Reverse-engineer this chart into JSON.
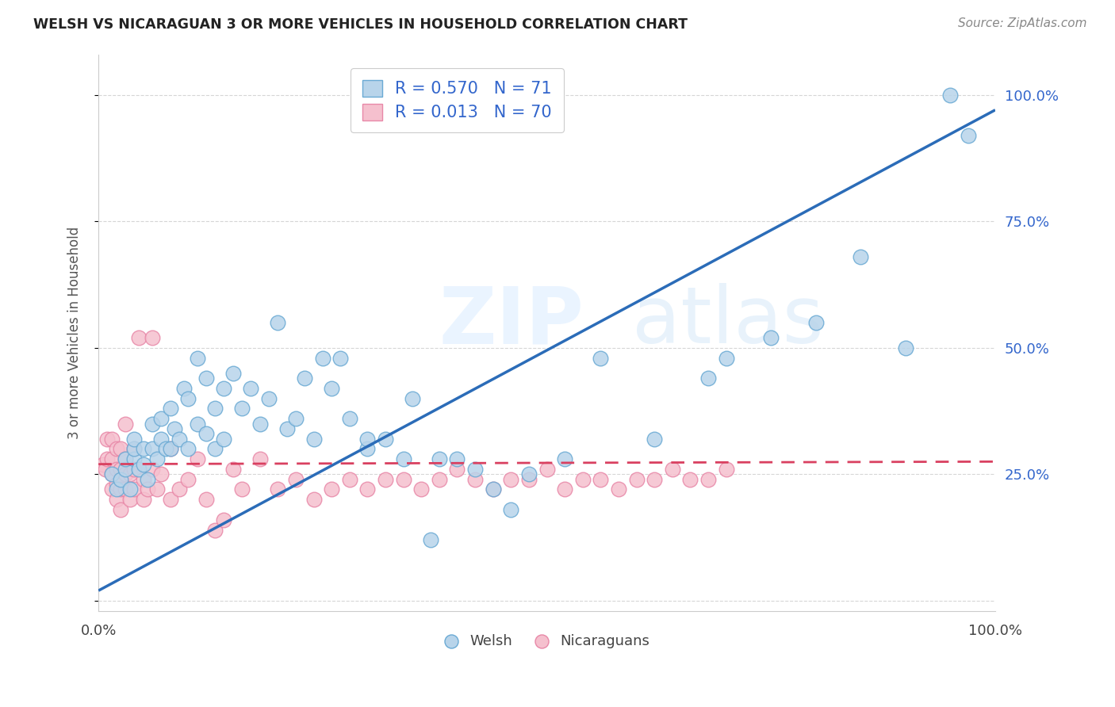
{
  "title": "WELSH VS NICARAGUAN 3 OR MORE VEHICLES IN HOUSEHOLD CORRELATION CHART",
  "source": "Source: ZipAtlas.com",
  "ylabel": "3 or more Vehicles in Household",
  "xlim": [
    0,
    1
  ],
  "ylim": [
    -0.02,
    1.08
  ],
  "yticks": [
    0.0,
    0.25,
    0.5,
    0.75,
    1.0
  ],
  "ytick_labels": [
    "",
    "25.0%",
    "50.0%",
    "75.0%",
    "100.0%"
  ],
  "xtick_labels": [
    "0.0%",
    "100.0%"
  ],
  "welsh_R": 0.57,
  "welsh_N": 71,
  "nicaraguan_R": 0.013,
  "nicaraguan_N": 70,
  "welsh_color": "#b8d4ea",
  "welsh_edge_color": "#6aaad4",
  "nicaraguan_color": "#f5c0ce",
  "nicaraguan_edge_color": "#e888a8",
  "welsh_line_color": "#2b6cb8",
  "nicaraguan_line_color": "#d94060",
  "grid_color": "#cccccc",
  "background_color": "#ffffff",
  "watermark_zip": "ZIP",
  "watermark_atlas": "atlas",
  "legend_label_color": "#3366cc",
  "welsh_x": [
    0.015,
    0.02,
    0.025,
    0.03,
    0.03,
    0.035,
    0.04,
    0.04,
    0.04,
    0.045,
    0.05,
    0.05,
    0.055,
    0.06,
    0.06,
    0.065,
    0.07,
    0.07,
    0.075,
    0.08,
    0.08,
    0.085,
    0.09,
    0.095,
    0.1,
    0.1,
    0.11,
    0.11,
    0.12,
    0.12,
    0.13,
    0.13,
    0.14,
    0.14,
    0.15,
    0.16,
    0.17,
    0.18,
    0.19,
    0.2,
    0.21,
    0.22,
    0.23,
    0.24,
    0.25,
    0.26,
    0.27,
    0.28,
    0.3,
    0.3,
    0.32,
    0.34,
    0.35,
    0.37,
    0.38,
    0.4,
    0.42,
    0.44,
    0.46,
    0.48,
    0.52,
    0.56,
    0.62,
    0.68,
    0.7,
    0.75,
    0.8,
    0.85,
    0.9,
    0.95,
    0.97
  ],
  "welsh_y": [
    0.25,
    0.22,
    0.24,
    0.26,
    0.28,
    0.22,
    0.28,
    0.3,
    0.32,
    0.26,
    0.27,
    0.3,
    0.24,
    0.3,
    0.35,
    0.28,
    0.32,
    0.36,
    0.3,
    0.3,
    0.38,
    0.34,
    0.32,
    0.42,
    0.3,
    0.4,
    0.35,
    0.48,
    0.33,
    0.44,
    0.3,
    0.38,
    0.32,
    0.42,
    0.45,
    0.38,
    0.42,
    0.35,
    0.4,
    0.55,
    0.34,
    0.36,
    0.44,
    0.32,
    0.48,
    0.42,
    0.48,
    0.36,
    0.3,
    0.32,
    0.32,
    0.28,
    0.4,
    0.12,
    0.28,
    0.28,
    0.26,
    0.22,
    0.18,
    0.25,
    0.28,
    0.48,
    0.32,
    0.44,
    0.48,
    0.52,
    0.55,
    0.68,
    0.5,
    1.0,
    0.92
  ],
  "nicaraguan_x": [
    0.005,
    0.008,
    0.01,
    0.01,
    0.015,
    0.015,
    0.015,
    0.015,
    0.02,
    0.02,
    0.02,
    0.02,
    0.025,
    0.025,
    0.025,
    0.025,
    0.03,
    0.03,
    0.03,
    0.03,
    0.035,
    0.035,
    0.04,
    0.04,
    0.04,
    0.045,
    0.05,
    0.05,
    0.055,
    0.06,
    0.06,
    0.065,
    0.07,
    0.08,
    0.08,
    0.09,
    0.1,
    0.11,
    0.12,
    0.13,
    0.14,
    0.15,
    0.16,
    0.18,
    0.2,
    0.22,
    0.24,
    0.26,
    0.28,
    0.3,
    0.32,
    0.34,
    0.36,
    0.38,
    0.4,
    0.42,
    0.44,
    0.46,
    0.48,
    0.5,
    0.52,
    0.54,
    0.56,
    0.58,
    0.6,
    0.62,
    0.64,
    0.66,
    0.68,
    0.7
  ],
  "nicaraguan_y": [
    0.27,
    0.26,
    0.28,
    0.32,
    0.22,
    0.25,
    0.28,
    0.32,
    0.2,
    0.23,
    0.26,
    0.3,
    0.18,
    0.22,
    0.26,
    0.3,
    0.22,
    0.25,
    0.28,
    0.35,
    0.2,
    0.25,
    0.22,
    0.26,
    0.3,
    0.52,
    0.2,
    0.24,
    0.22,
    0.26,
    0.52,
    0.22,
    0.25,
    0.2,
    0.3,
    0.22,
    0.24,
    0.28,
    0.2,
    0.14,
    0.16,
    0.26,
    0.22,
    0.28,
    0.22,
    0.24,
    0.2,
    0.22,
    0.24,
    0.22,
    0.24,
    0.24,
    0.22,
    0.24,
    0.26,
    0.24,
    0.22,
    0.24,
    0.24,
    0.26,
    0.22,
    0.24,
    0.24,
    0.22,
    0.24,
    0.24,
    0.26,
    0.24,
    0.24,
    0.26
  ]
}
